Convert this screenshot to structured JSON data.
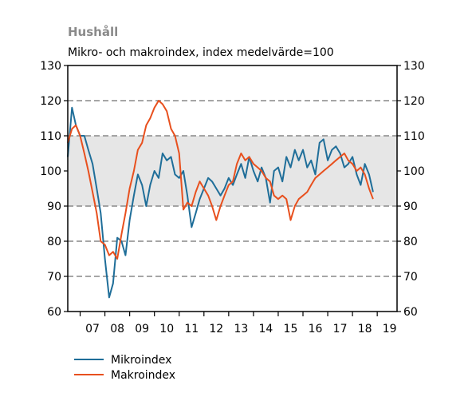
{
  "chart_data": {
    "type": "line",
    "title": "Hushåll",
    "subtitle": "Mikro- och makroindex, index medelvärde=100",
    "ylim": [
      60,
      130
    ],
    "yticks": [
      60,
      70,
      80,
      90,
      100,
      110,
      120,
      130
    ],
    "y_tick_labels": [
      "60",
      "70",
      "80",
      "90",
      "100",
      "110",
      "120",
      "130"
    ],
    "xlim": [
      2006.5,
      2019.8
    ],
    "x_tick_labels": [
      "07",
      "08",
      "09",
      "10",
      "11",
      "12",
      "13",
      "14",
      "15",
      "16",
      "17",
      "18",
      "19"
    ],
    "x_tick_positions": [
      2007,
      2008,
      2009,
      2010,
      2011,
      2012,
      2013,
      2014,
      2015,
      2016,
      2017,
      2018,
      2019
    ],
    "dashed_gridlines": [
      70,
      80,
      90,
      110,
      120
    ],
    "shaded_band": [
      90,
      110
    ],
    "legend_position": "bottom-left",
    "series": [
      {
        "name": "Mikroindex",
        "color": "#1f6e99",
        "x": [
          2006.5,
          2006.67,
          2006.83,
          2007.0,
          2007.17,
          2007.33,
          2007.5,
          2007.67,
          2007.83,
          2008.0,
          2008.17,
          2008.33,
          2008.5,
          2008.67,
          2008.83,
          2009.0,
          2009.17,
          2009.33,
          2009.5,
          2009.67,
          2009.83,
          2010.0,
          2010.17,
          2010.33,
          2010.5,
          2010.67,
          2010.83,
          2011.0,
          2011.17,
          2011.33,
          2011.5,
          2011.67,
          2011.83,
          2012.0,
          2012.17,
          2012.33,
          2012.5,
          2012.67,
          2012.83,
          2013.0,
          2013.17,
          2013.33,
          2013.5,
          2013.67,
          2013.83,
          2014.0,
          2014.17,
          2014.33,
          2014.5,
          2014.67,
          2014.83,
          2015.0,
          2015.17,
          2015.33,
          2015.5,
          2015.67,
          2015.83,
          2016.0,
          2016.17,
          2016.33,
          2016.5,
          2016.67,
          2016.83,
          2017.0,
          2017.17,
          2017.33,
          2017.5,
          2017.67,
          2017.83,
          2018.0,
          2018.17,
          2018.33,
          2018.5,
          2018.67,
          2018.83
        ],
        "y": [
          104,
          118,
          113,
          110,
          110,
          106,
          102,
          95,
          88,
          75,
          64,
          68,
          81,
          80,
          76,
          86,
          93,
          99,
          96,
          90,
          96,
          100,
          98,
          105,
          103,
          104,
          99,
          98,
          100,
          93,
          84,
          88,
          92,
          95,
          98,
          97,
          95,
          93,
          95,
          98,
          96,
          99,
          102,
          98,
          104,
          100,
          97,
          101,
          98,
          91,
          100,
          101,
          97,
          104,
          101,
          106,
          103,
          106,
          101,
          103,
          99,
          108,
          109,
          103,
          106,
          107,
          105,
          101,
          102,
          104,
          99,
          96,
          102,
          99,
          94
        ]
      },
      {
        "name": "Makroindex",
        "color": "#e8501e",
        "x": [
          2006.5,
          2006.67,
          2006.83,
          2007.0,
          2007.17,
          2007.33,
          2007.5,
          2007.67,
          2007.83,
          2008.0,
          2008.17,
          2008.33,
          2008.5,
          2008.67,
          2008.83,
          2009.0,
          2009.17,
          2009.33,
          2009.5,
          2009.67,
          2009.83,
          2010.0,
          2010.17,
          2010.33,
          2010.5,
          2010.67,
          2010.83,
          2011.0,
          2011.17,
          2011.33,
          2011.5,
          2011.67,
          2011.83,
          2012.0,
          2012.17,
          2012.33,
          2012.5,
          2012.67,
          2012.83,
          2013.0,
          2013.17,
          2013.33,
          2013.5,
          2013.67,
          2013.83,
          2014.0,
          2014.17,
          2014.33,
          2014.5,
          2014.67,
          2014.83,
          2015.0,
          2015.17,
          2015.33,
          2015.5,
          2015.67,
          2015.83,
          2016.0,
          2016.17,
          2016.33,
          2016.5,
          2016.67,
          2016.83,
          2017.0,
          2017.17,
          2017.33,
          2017.5,
          2017.67,
          2017.83,
          2018.0,
          2018.17,
          2018.33,
          2018.5,
          2018.67,
          2018.83
        ],
        "y": [
          108,
          112,
          113,
          110,
          105,
          100,
          94,
          88,
          80,
          79,
          76,
          77,
          75,
          82,
          88,
          95,
          100,
          106,
          108,
          113,
          115,
          118,
          120,
          119,
          117,
          112,
          110,
          105,
          89,
          91,
          90,
          94,
          97,
          95,
          93,
          90,
          86,
          90,
          93,
          96,
          97,
          102,
          105,
          103,
          104,
          102,
          101,
          100,
          98,
          97,
          93,
          92,
          93,
          92,
          86,
          90,
          92,
          93,
          94,
          96,
          98,
          99,
          100,
          101,
          102,
          103,
          104,
          105,
          103,
          102,
          100,
          101,
          99,
          95,
          92
        ]
      }
    ]
  }
}
